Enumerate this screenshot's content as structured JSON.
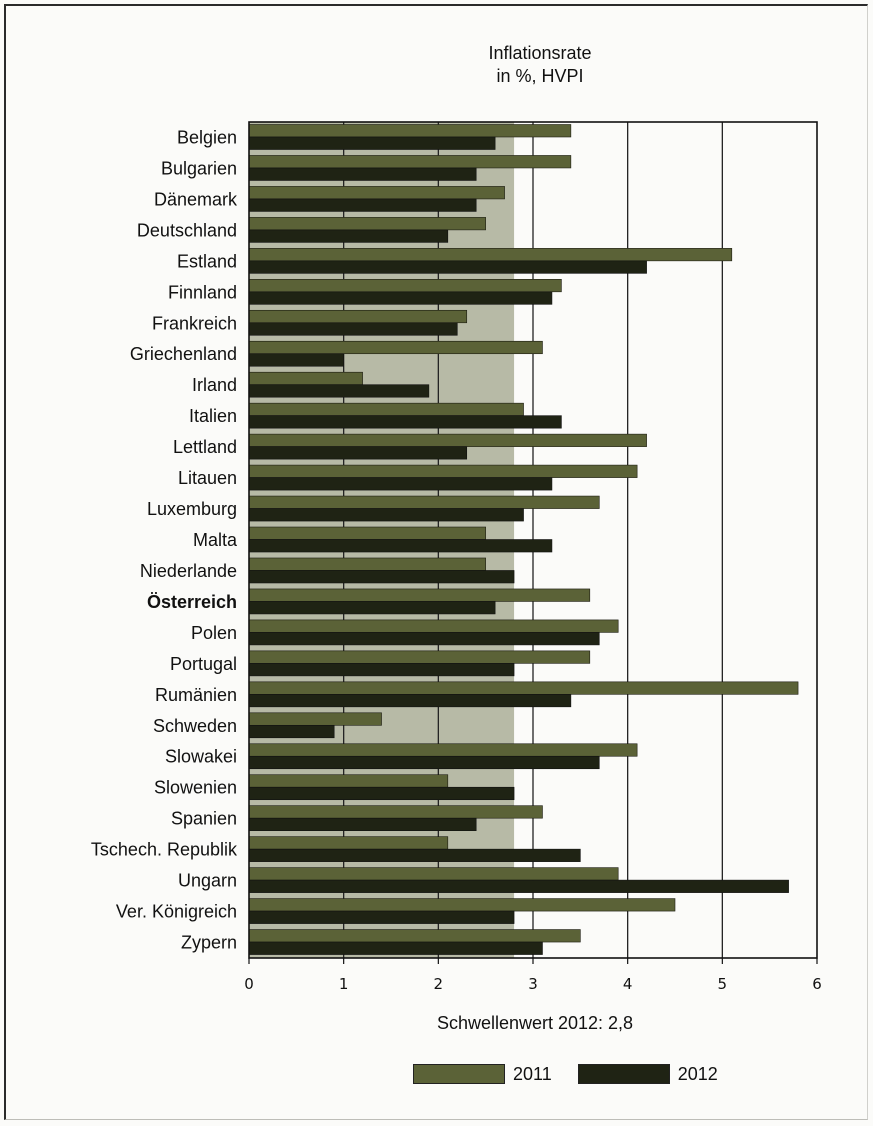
{
  "chart_data": {
    "type": "bar",
    "orientation": "horizontal",
    "title": "Inflationsrate",
    "subtitle": "in %, HVPI",
    "categories": [
      "Belgien",
      "Bulgarien",
      "Dänemark",
      "Deutschland",
      "Estland",
      "Finnland",
      "Frankreich",
      "Griechenland",
      "Irland",
      "Italien",
      "Lettland",
      "Litauen",
      "Luxemburg",
      "Malta",
      "Niederlande",
      "Österreich",
      "Polen",
      "Portugal",
      "Rumänien",
      "Schweden",
      "Slowakei",
      "Slowenien",
      "Spanien",
      "Tschech. Republik",
      "Ungarn",
      "Ver. Königreich",
      "Zypern"
    ],
    "highlight_category": "Österreich",
    "series": [
      {
        "name": "2011",
        "color": "#5b6237",
        "values": [
          3.4,
          3.4,
          2.7,
          2.5,
          5.1,
          3.3,
          2.3,
          3.1,
          1.2,
          2.9,
          4.2,
          4.1,
          3.7,
          2.5,
          2.5,
          3.6,
          3.9,
          3.6,
          5.8,
          1.4,
          4.1,
          2.1,
          3.1,
          2.1,
          3.9,
          4.5,
          3.5
        ]
      },
      {
        "name": "2012",
        "color": "#1f2314",
        "values": [
          2.6,
          2.4,
          2.4,
          2.1,
          4.2,
          3.2,
          2.2,
          1.0,
          1.9,
          3.3,
          2.3,
          3.2,
          2.9,
          3.2,
          2.8,
          2.6,
          3.7,
          2.8,
          3.4,
          0.9,
          3.7,
          2.8,
          2.4,
          3.5,
          5.7,
          2.8,
          3.1
        ]
      }
    ],
    "xlim": [
      0,
      6
    ],
    "xticks": [
      "0",
      "1",
      "2",
      "3",
      "4",
      "5",
      "6"
    ],
    "threshold": {
      "value": 2.8,
      "label": "Schwellenwert 2012: 2,8",
      "color": "#b7baa6"
    },
    "grid_color": "#222222",
    "legend": {
      "position": "bottom",
      "items": [
        {
          "label": "2011",
          "color": "#5b6237"
        },
        {
          "label": "2012",
          "color": "#1f2314"
        }
      ]
    }
  }
}
